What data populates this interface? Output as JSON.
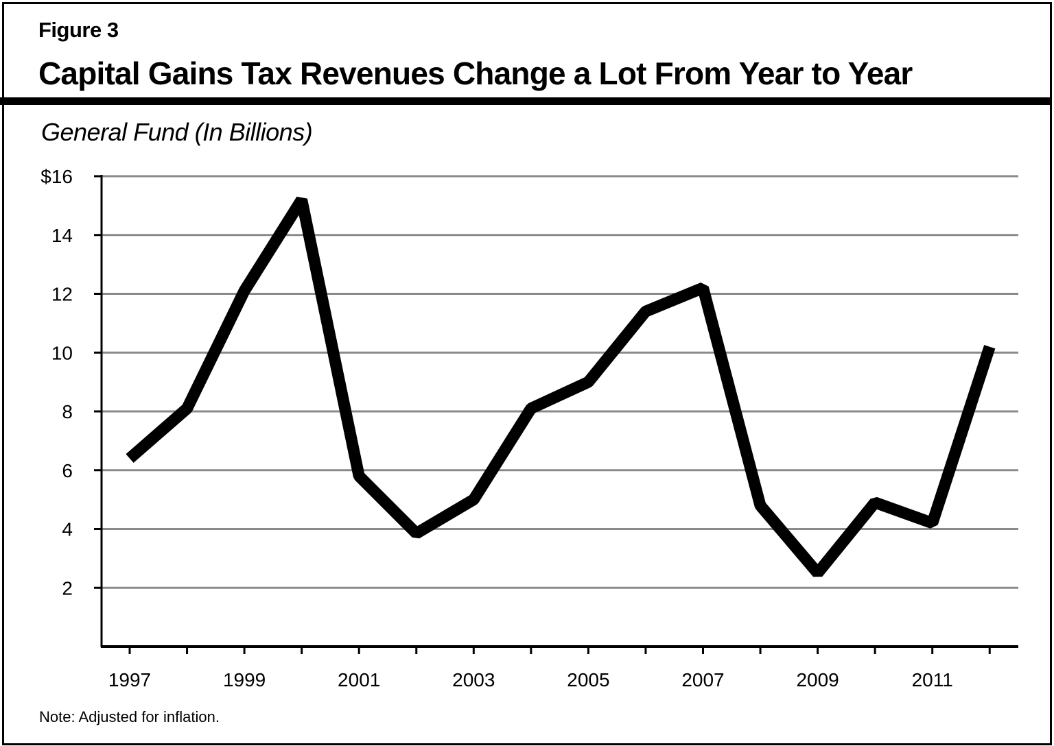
{
  "figure": {
    "label": "Figure 3",
    "title": "Capital Gains Tax Revenues Change a Lot From Year to Year",
    "subtitle": "General Fund (In Billions)",
    "note": "Note: Adjusted for inflation."
  },
  "colors": {
    "line": "#000000",
    "gridline": "#8a8a8a",
    "axis": "#000000",
    "background": "#ffffff"
  },
  "chart_data": {
    "type": "line",
    "title": "Capital Gains Tax Revenues Change a Lot From Year to Year",
    "subtitle": "General Fund (In Billions)",
    "xlabel": "",
    "ylabel": "General Fund (In Billions)",
    "x": [
      1997,
      1998,
      1999,
      2000,
      2001,
      2002,
      2003,
      2004,
      2005,
      2006,
      2007,
      2008,
      2009,
      2010,
      2011,
      2012
    ],
    "series": [
      {
        "name": "Capital Gains Tax Revenues",
        "values": [
          6.4,
          8.1,
          12.1,
          15.2,
          5.8,
          3.85,
          5.0,
          8.1,
          9.0,
          11.4,
          12.2,
          4.8,
          2.5,
          4.9,
          4.2,
          10.2
        ]
      }
    ],
    "ylim": [
      0,
      16
    ],
    "yticks": [
      2,
      4,
      6,
      8,
      10,
      12,
      14,
      16
    ],
    "ytick_labels": [
      "2",
      "4",
      "6",
      "8",
      "10",
      "12",
      "14",
      "$16"
    ],
    "xtick_labels": [
      "1997",
      "1999",
      "2001",
      "2003",
      "2005",
      "2007",
      "2009",
      "2011"
    ],
    "grid": true,
    "legend": "none",
    "note": "Note: Adjusted for inflation."
  }
}
